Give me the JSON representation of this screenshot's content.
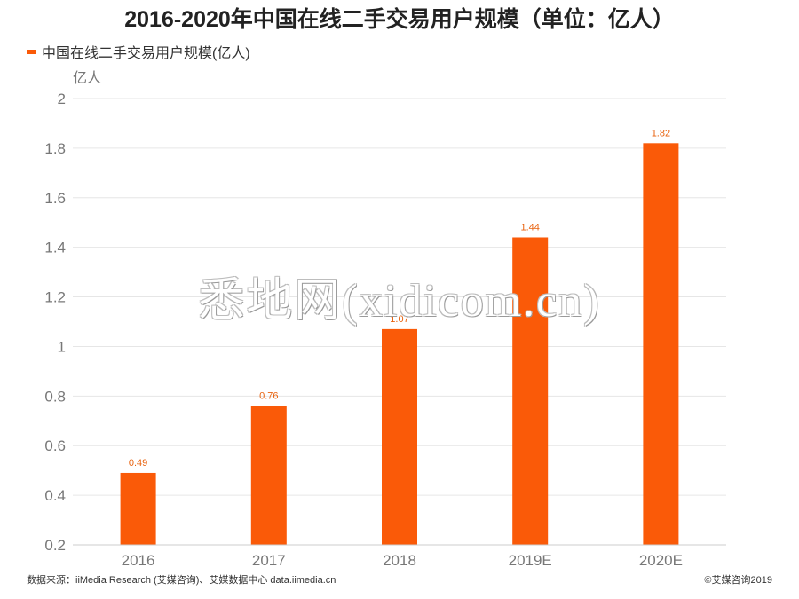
{
  "title": "2016-2020年中国在线二手交易用户规模（单位：亿人）",
  "legend": {
    "label": "中国在线二手交易用户规模(亿人)"
  },
  "watermark": "悉地网(xidicom.cn)",
  "source": "数据来源：iiMedia Research (艾媒咨询)、艾媒数据中心 data.iimedia.cn",
  "copyright": "©艾媒咨询2019",
  "colors": {
    "bar": "#fa5a08",
    "label": "#e8620e",
    "grid": "#e6e6e6",
    "axis_text": "#777777"
  },
  "chart_data": {
    "type": "bar",
    "title": "2016-2020年中国在线二手交易用户规模（单位：亿人）",
    "ylabel": "亿人",
    "xlabel": "",
    "categories": [
      "2016",
      "2017",
      "2018",
      "2019E",
      "2020E"
    ],
    "series": [
      {
        "name": "中国在线二手交易用户规模(亿人)",
        "values": [
          0.49,
          0.76,
          1.07,
          1.44,
          1.82
        ]
      }
    ],
    "ylim": [
      0.2,
      2
    ],
    "yticks": [
      "0.2",
      "0.4",
      "0.6",
      "0.8",
      "1",
      "1.2",
      "1.4",
      "1.6",
      "1.8",
      "2"
    ],
    "grid": true,
    "legend_position": "top-left"
  }
}
